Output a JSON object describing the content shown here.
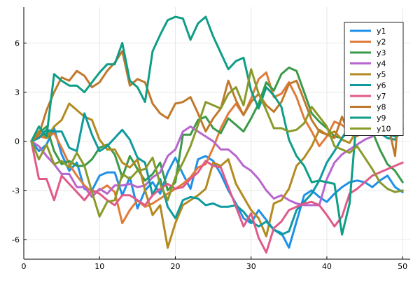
{
  "chart_data": {
    "type": "line",
    "title": "",
    "xlabel": "",
    "ylabel": "",
    "xlim": [
      0,
      51
    ],
    "ylim": [
      -7.2,
      8.2
    ],
    "x_ticks": [
      0,
      10,
      20,
      30,
      40,
      50
    ],
    "y_ticks": [
      -6,
      -3,
      0,
      3,
      6
    ],
    "x_tick_labels": [
      "0",
      "10",
      "20",
      "30",
      "40",
      "50"
    ],
    "y_tick_labels": [
      "-6",
      "-3",
      "0",
      "3",
      "6"
    ],
    "grid": true,
    "legend_position": "top-right",
    "x": [
      1,
      2,
      3,
      4,
      5,
      6,
      7,
      8,
      9,
      10,
      11,
      12,
      13,
      14,
      15,
      16,
      17,
      18,
      19,
      20,
      21,
      22,
      23,
      24,
      25,
      26,
      27,
      28,
      29,
      30,
      31,
      32,
      33,
      34,
      35,
      36,
      37,
      38,
      39,
      40,
      41,
      42,
      43,
      44,
      45,
      46,
      47,
      48,
      49,
      50
    ],
    "series": [
      {
        "name": "y1",
        "color": "#1e90e8",
        "values": [
          0.0,
          -0.6,
          -0.2,
          0.8,
          -0.8,
          -1.8,
          -1.3,
          -2.9,
          -3.0,
          -2.1,
          -1.9,
          -1.9,
          -3.3,
          -2.2,
          -4.1,
          -3.0,
          -2.5,
          -3.2,
          -1.9,
          -1.0,
          -2.0,
          -2.9,
          -1.1,
          -0.9,
          -1.2,
          -2.0,
          -3.0,
          -3.8,
          -4.7,
          -5.0,
          -4.2,
          -4.8,
          -5.4,
          -5.6,
          -6.5,
          -4.9,
          -3.3,
          -3.0,
          -3.4,
          -3.7,
          -3.2,
          -2.8,
          -2.5,
          -2.4,
          -2.5,
          -2.8,
          -2.4,
          -2.1,
          -2.8,
          -3.1
        ]
      },
      {
        "name": "y2",
        "color": "#e07b39",
        "values": [
          0.0,
          0.3,
          0.2,
          0.5,
          -0.4,
          -1.4,
          -2.1,
          -2.7,
          -3.1,
          -3.0,
          -2.7,
          -3.1,
          -5.0,
          -4.2,
          -3.6,
          -4.0,
          -3.8,
          -3.5,
          -3.2,
          -2.9,
          -2.6,
          -2.2,
          -1.6,
          -1.4,
          -0.4,
          0.8,
          1.7,
          2.3,
          1.6,
          2.6,
          3.8,
          4.2,
          2.7,
          2.9,
          3.6,
          2.7,
          1.4,
          0.6,
          -0.3,
          0.3,
          1.2,
          1.0,
          0.6,
          0.3,
          0.7,
          0.4,
          0.6,
          0.8,
          1.4,
          2.3
        ]
      },
      {
        "name": "y3",
        "color": "#3a9a48",
        "values": [
          0.0,
          0.5,
          0.9,
          -0.6,
          -1.4,
          -1.2,
          -1.5,
          -1.5,
          -1.1,
          -0.4,
          -0.2,
          -0.8,
          -2.2,
          -0.9,
          -1.7,
          -2.4,
          -2.0,
          -1.3,
          -3.0,
          -2.5,
          0.4,
          0.4,
          1.3,
          1.5,
          0.8,
          0.5,
          1.4,
          1.0,
          0.6,
          1.4,
          2.3,
          3.6,
          3.1,
          4.1,
          4.5,
          4.3,
          3.0,
          1.7,
          1.2,
          0.8,
          0.3,
          0.2,
          0.7,
          1.3,
          0.9,
          0.6,
          -0.5,
          -1.4,
          -1.8,
          -2.5
        ]
      },
      {
        "name": "y4",
        "color": "#b866cf",
        "values": [
          0.0,
          -0.3,
          -0.9,
          -1.4,
          -2.0,
          -2.0,
          -2.8,
          -2.8,
          -3.4,
          -2.9,
          -3.2,
          -2.7,
          -2.7,
          -2.6,
          -2.8,
          -2.7,
          -2.2,
          -1.9,
          -0.9,
          -0.5,
          0.6,
          0.9,
          0.6,
          0.3,
          0.0,
          -0.5,
          -0.5,
          -0.9,
          -1.5,
          -1.8,
          -2.3,
          -3.0,
          -3.5,
          -3.3,
          -3.6,
          -3.8,
          -3.9,
          -3.9,
          -3.9,
          -2.3,
          -1.3,
          -0.8,
          -0.5,
          -0.2,
          0.1,
          0.3,
          0.8,
          1.3,
          2.0,
          3.2
        ]
      },
      {
        "name": "y5",
        "color": "#b38a1f",
        "values": [
          0.0,
          0.6,
          0.2,
          0.9,
          1.3,
          2.3,
          1.9,
          1.5,
          1.3,
          0.1,
          -0.5,
          -0.5,
          -1.3,
          -1.6,
          -1.1,
          -3.0,
          -4.5,
          -3.9,
          -6.5,
          -5.0,
          -3.9,
          -3.6,
          -3.3,
          -2.9,
          -1.3,
          -1.5,
          -1.1,
          -2.6,
          -3.4,
          -4.2,
          -4.7,
          -5.8,
          -3.8,
          -3.6,
          -2.9,
          -1.5,
          -1.0,
          -0.3,
          0.7,
          0.4,
          0.6,
          0.1,
          -0.1,
          0.7,
          1.5,
          1.0,
          1.1,
          1.2,
          0.3,
          1.5
        ]
      },
      {
        "name": "y6",
        "color": "#0e9a9e",
        "values": [
          0.0,
          0.2,
          0.7,
          0.6,
          0.6,
          -0.4,
          -0.6,
          1.7,
          0.4,
          -0.6,
          -0.3,
          0.2,
          0.7,
          0.1,
          -1.0,
          -1.3,
          -3.3,
          -2.3,
          -4.0,
          -4.7,
          -3.6,
          -3.4,
          -3.5,
          -3.9,
          -3.8,
          -4.0,
          -4.0,
          -3.9,
          -4.3,
          -4.9,
          -5.2,
          -4.9,
          -5.4,
          -5.7,
          -5.5,
          -4.2,
          -3.7,
          -3.2,
          -2.4,
          -1.3,
          -0.6,
          0.2,
          0.9,
          1.6,
          1.8,
          1.3,
          0.5,
          0.2,
          0.1,
          0.8
        ]
      },
      {
        "name": "y7",
        "color": "#e05a8a",
        "values": [
          0.0,
          -2.3,
          -2.3,
          -3.6,
          -2.1,
          -2.6,
          -3.1,
          -3.6,
          -3.0,
          -3.2,
          -3.6,
          -3.9,
          -3.3,
          -3.3,
          -3.6,
          -3.9,
          -3.3,
          -2.9,
          -2.6,
          -2.9,
          -2.8,
          -2.3,
          -1.9,
          -1.2,
          -1.5,
          -1.6,
          -2.8,
          -4.0,
          -5.2,
          -4.4,
          -5.9,
          -6.8,
          -5.3,
          -4.9,
          -4.2,
          -4.0,
          -3.8,
          -3.7,
          -3.9,
          -4.5,
          -5.2,
          -4.6,
          -3.2,
          -2.9,
          -2.5,
          -2.1,
          -1.9,
          -1.7,
          -1.5,
          -1.3
        ]
      },
      {
        "name": "y8",
        "color": "#c0792c",
        "values": [
          0.0,
          0.4,
          1.9,
          3.0,
          3.9,
          3.7,
          4.3,
          4.0,
          3.3,
          3.6,
          4.3,
          4.8,
          5.5,
          3.4,
          3.8,
          3.6,
          2.3,
          1.7,
          1.4,
          2.3,
          2.4,
          2.7,
          1.7,
          0.6,
          1.4,
          2.0,
          3.7,
          2.5,
          1.6,
          2.4,
          2.9,
          2.2,
          1.8,
          2.4,
          3.5,
          3.7,
          2.5,
          1.3,
          0.6,
          0.4,
          0.2,
          1.5,
          0.4,
          0.8,
          1.2,
          1.6,
          1.4,
          1.2,
          -0.9,
          4.9
        ]
      },
      {
        "name": "y9",
        "color": "#0e9e86",
        "values": [
          0.0,
          0.9,
          0.3,
          4.1,
          3.7,
          3.4,
          3.4,
          3.0,
          3.6,
          4.2,
          4.7,
          4.7,
          6.0,
          3.7,
          3.3,
          2.4,
          5.5,
          6.5,
          7.4,
          7.6,
          7.5,
          6.2,
          7.2,
          7.6,
          6.4,
          5.4,
          4.4,
          4.9,
          5.1,
          3.1,
          2.0,
          3.3,
          2.8,
          2.1,
          0.1,
          -0.9,
          -1.5,
          -2.5,
          -2.4,
          -2.5,
          -2.6,
          -5.7,
          -3.8,
          1.8,
          1.2,
          0.9,
          0.5,
          0.4,
          0.3,
          0.8
        ]
      },
      {
        "name": "y10",
        "color": "#8a9a2a",
        "values": [
          0.0,
          -1.1,
          -0.2,
          -1.4,
          -1.2,
          -1.6,
          -0.7,
          -1.5,
          -3.1,
          -4.6,
          -3.7,
          -3.6,
          -2.0,
          -2.3,
          -1.8,
          -1.7,
          -1.0,
          -2.6,
          -3.6,
          -2.2,
          -1.3,
          -0.3,
          1.0,
          2.4,
          2.2,
          2.0,
          2.9,
          3.3,
          2.2,
          4.4,
          2.9,
          1.9,
          0.8,
          0.8,
          0.6,
          0.7,
          1.1,
          2.1,
          1.5,
          0.9,
          -0.3,
          -0.5,
          -0.7,
          -0.3,
          -1.0,
          -1.7,
          -2.5,
          -2.9,
          -3.1,
          -3.0
        ]
      }
    ]
  }
}
